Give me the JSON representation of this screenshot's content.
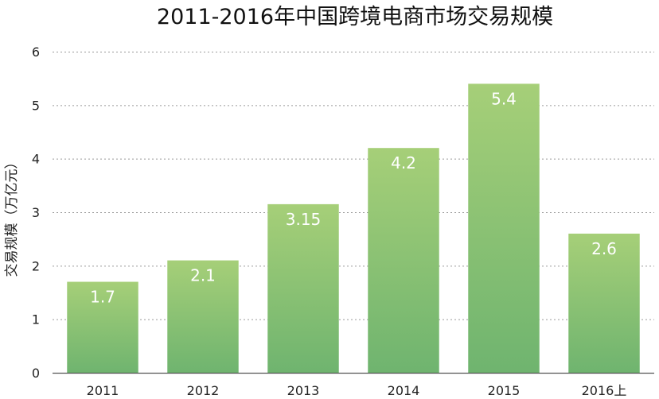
{
  "chart_data": {
    "type": "bar",
    "title": "2011-2016年中国跨境电商市场交易规模",
    "xlabel": "",
    "ylabel": "交易规模（万亿元）",
    "categories": [
      "2011",
      "2012",
      "2013",
      "2014",
      "2015",
      "2016上"
    ],
    "values": [
      1.7,
      2.1,
      3.15,
      4.2,
      5.4,
      2.6
    ],
    "value_labels": [
      "1.7",
      "2.1",
      "3.15",
      "4.2",
      "5.4",
      "2.6"
    ],
    "ylim": [
      0,
      6
    ],
    "yticks": [
      "0",
      "1",
      "2",
      "3",
      "4",
      "5",
      "6"
    ],
    "grid": true,
    "legend": "none",
    "colors": {
      "bar_top": "#a6cf78",
      "bar_bottom": "#6fb46f",
      "label": "#ffffff"
    }
  }
}
